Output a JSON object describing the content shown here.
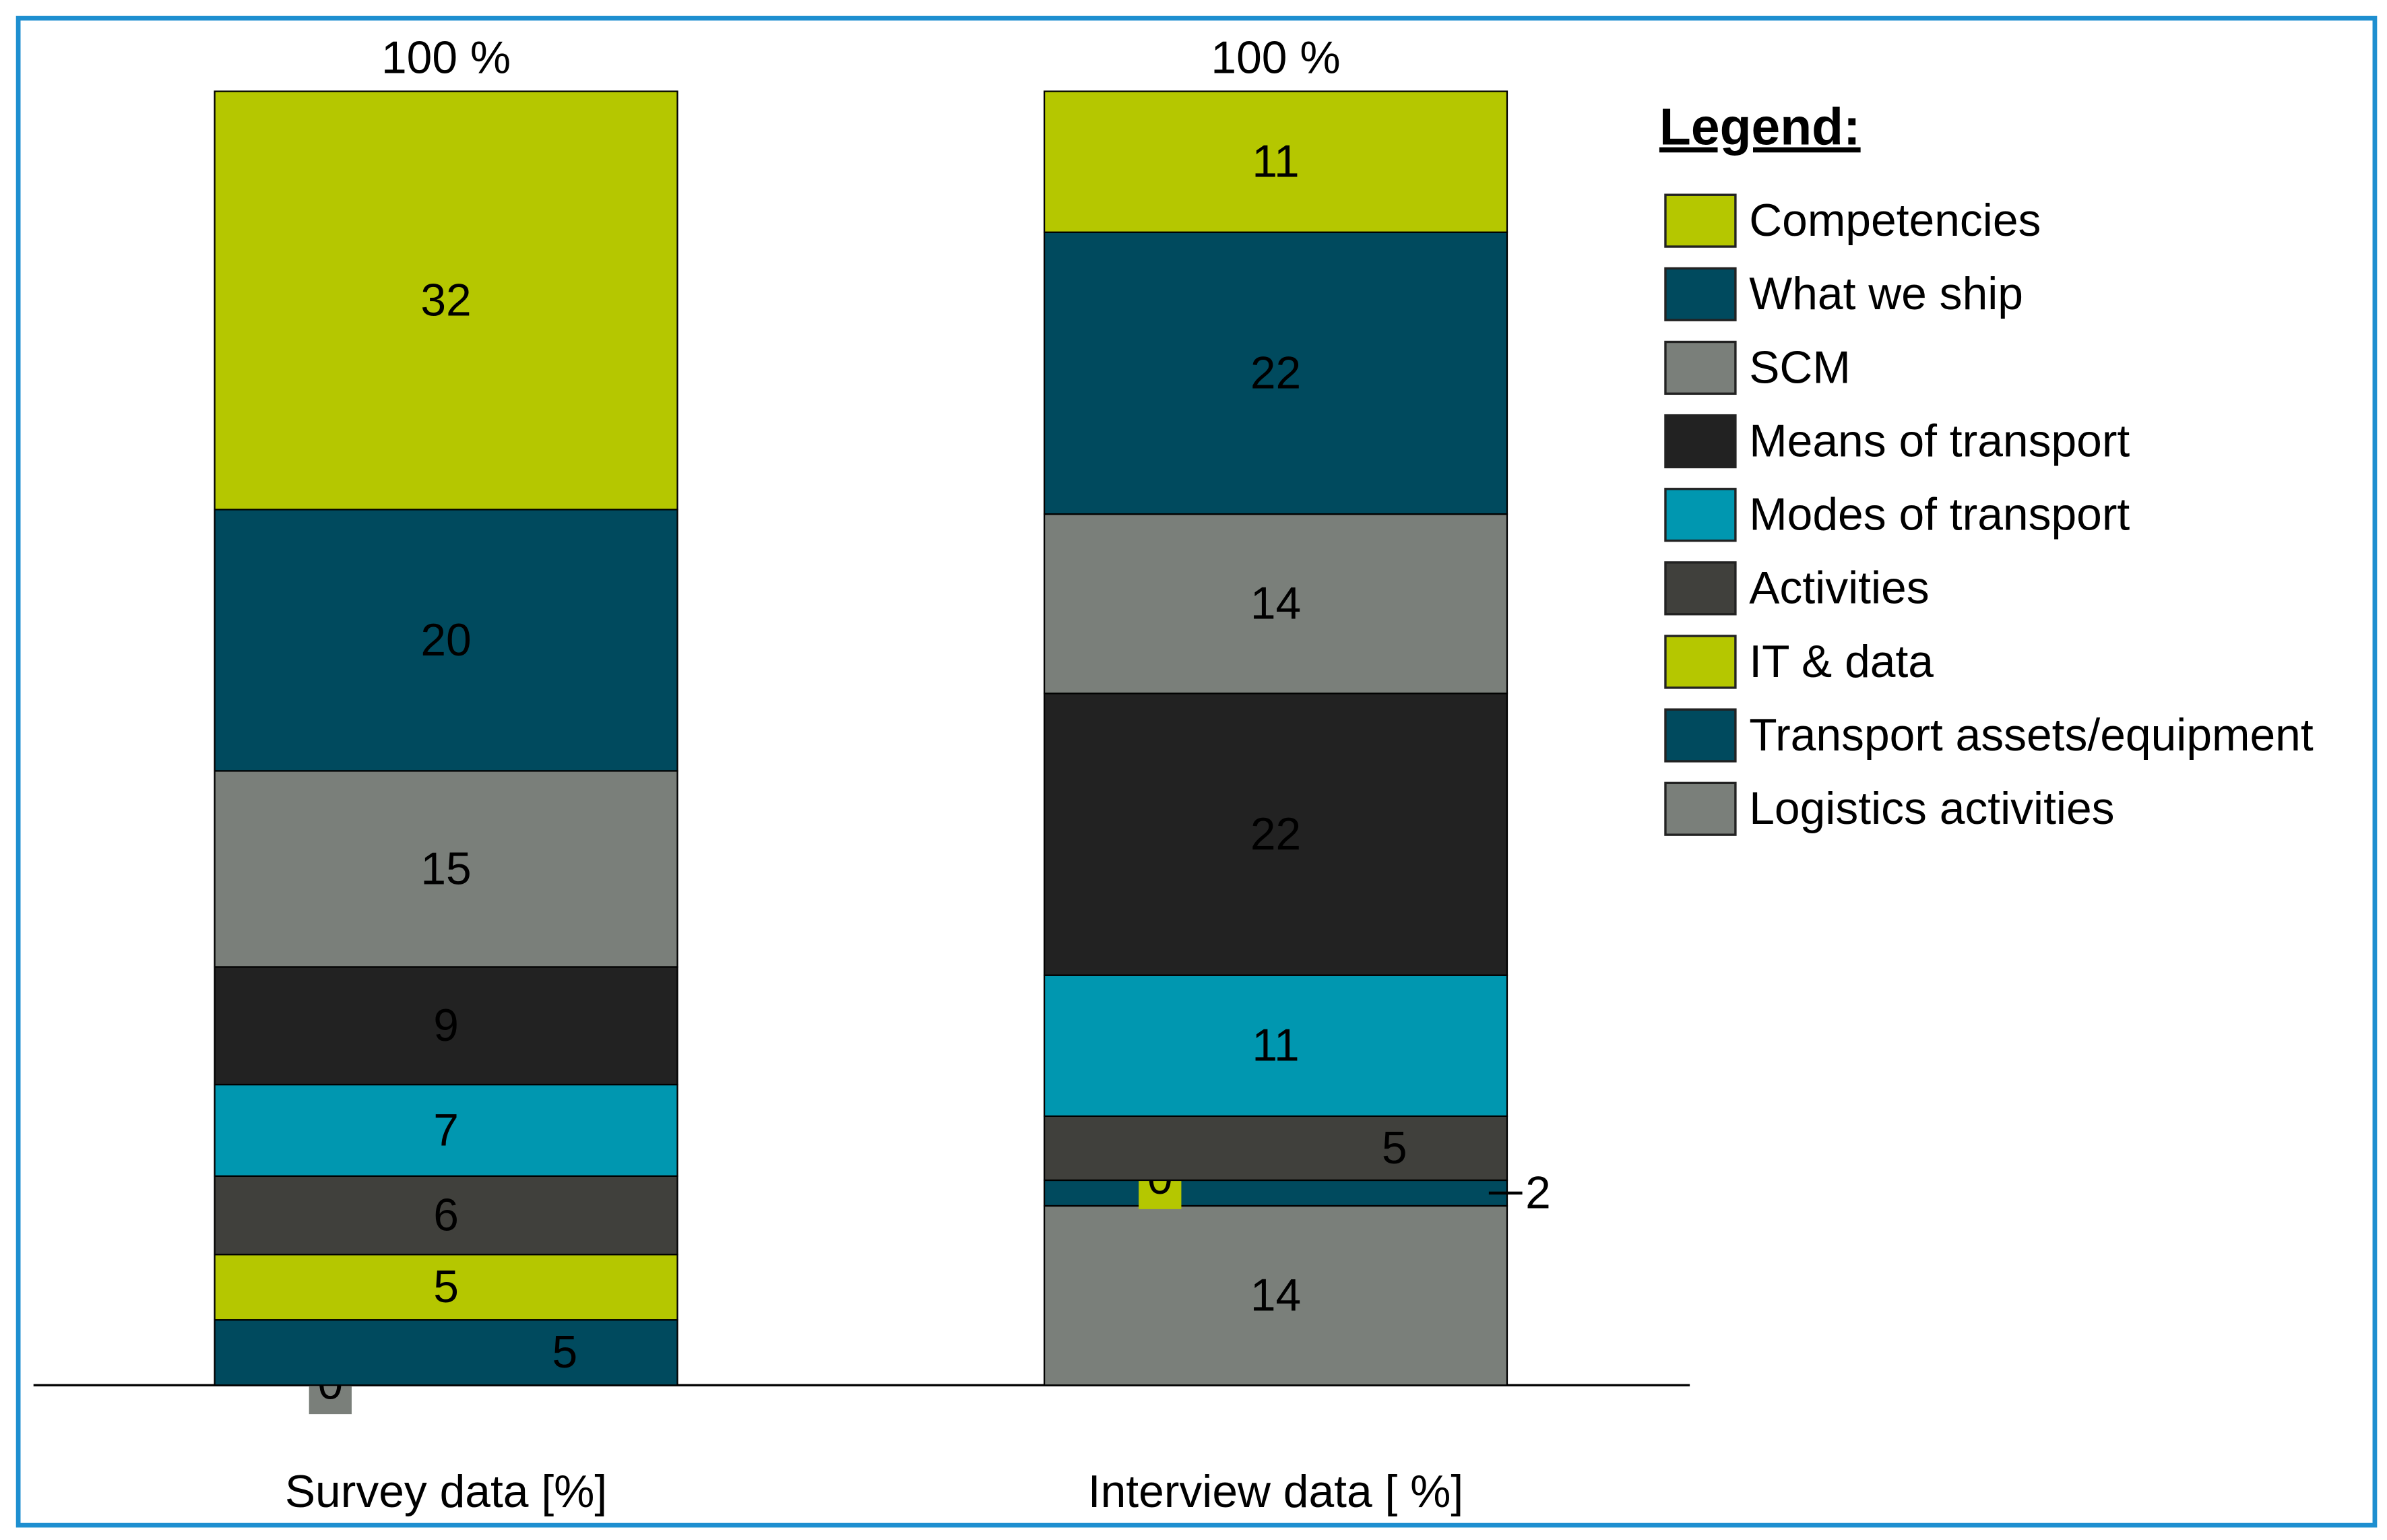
{
  "chart_data": {
    "type": "stacked_bar",
    "categories": [
      "Survey data [%]",
      "Interview data [ %]"
    ],
    "total_labels": [
      "100 %",
      "100 %"
    ],
    "legend_title": "Legend:",
    "legend": "right",
    "series": [
      {
        "name": "Logistics activities",
        "color": "#7a7f7a",
        "values": [
          0,
          14
        ]
      },
      {
        "name": "Transport assets/equipment",
        "color": "#004a5e",
        "values": [
          5,
          2
        ]
      },
      {
        "name": "IT & data",
        "color": "#b5c700",
        "values": [
          5,
          0
        ]
      },
      {
        "name": "Activities",
        "color": "#40403c",
        "values": [
          6,
          5
        ]
      },
      {
        "name": "Modes of transport",
        "color": "#0097b0",
        "values": [
          7,
          11
        ]
      },
      {
        "name": "Means of transport",
        "color": "#222222",
        "values": [
          9,
          22
        ]
      },
      {
        "name": "SCM",
        "color": "#7a7f7a",
        "values": [
          15,
          14
        ]
      },
      {
        "name": "What we ship",
        "color": "#004a5e",
        "values": [
          20,
          22
        ]
      },
      {
        "name": "Competencies",
        "color": "#b5c700",
        "values": [
          32,
          11
        ]
      }
    ]
  }
}
